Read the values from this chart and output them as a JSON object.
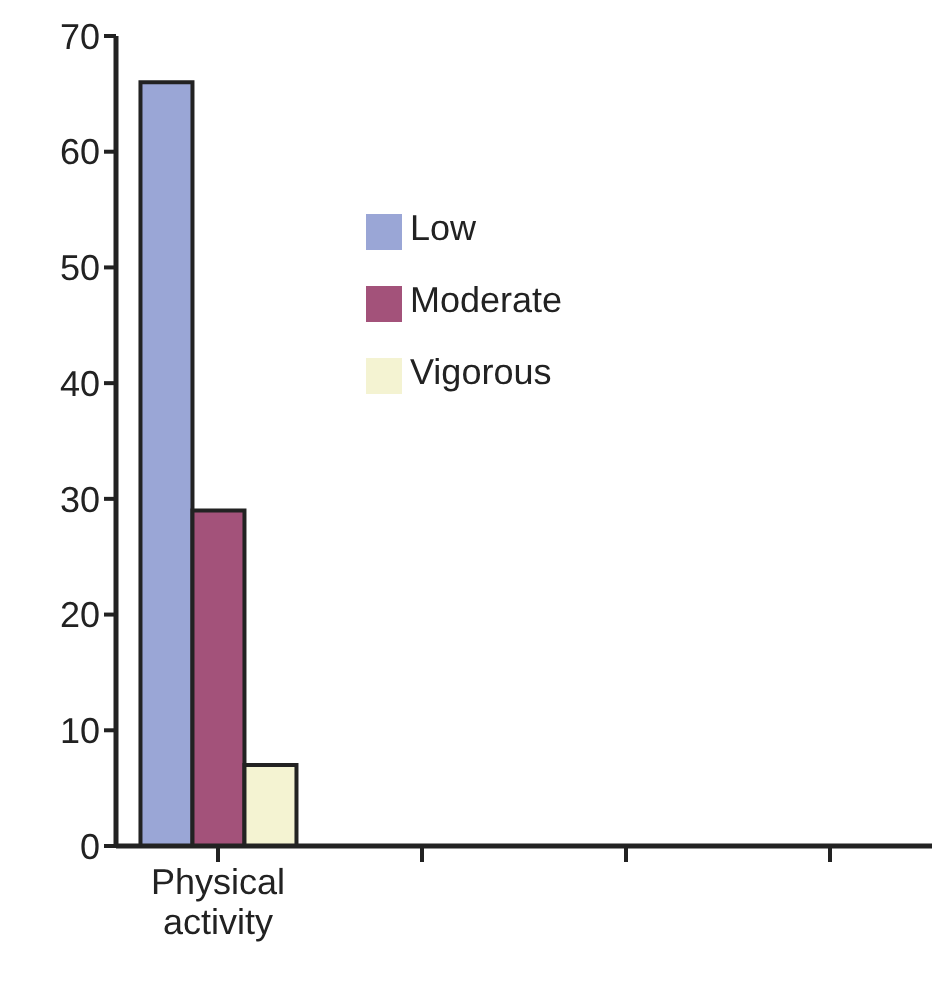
{
  "chart_data": {
    "type": "bar",
    "categories": [
      "Physical activity",
      null,
      null,
      null
    ],
    "series": [
      {
        "name": "Low",
        "color": "#9aa6d6",
        "values": [
          66,
          null,
          null,
          null
        ]
      },
      {
        "name": "Moderate",
        "color": "#a3527a",
        "values": [
          29,
          null,
          null,
          null
        ]
      },
      {
        "name": "Vigorous",
        "color": "#f4f3d2",
        "values": [
          7,
          null,
          null,
          null
        ]
      }
    ],
    "ylim": [
      0,
      70
    ],
    "yticks": [
      0,
      10,
      20,
      30,
      40,
      50,
      60,
      70
    ],
    "grid": false,
    "legend": "top"
  }
}
